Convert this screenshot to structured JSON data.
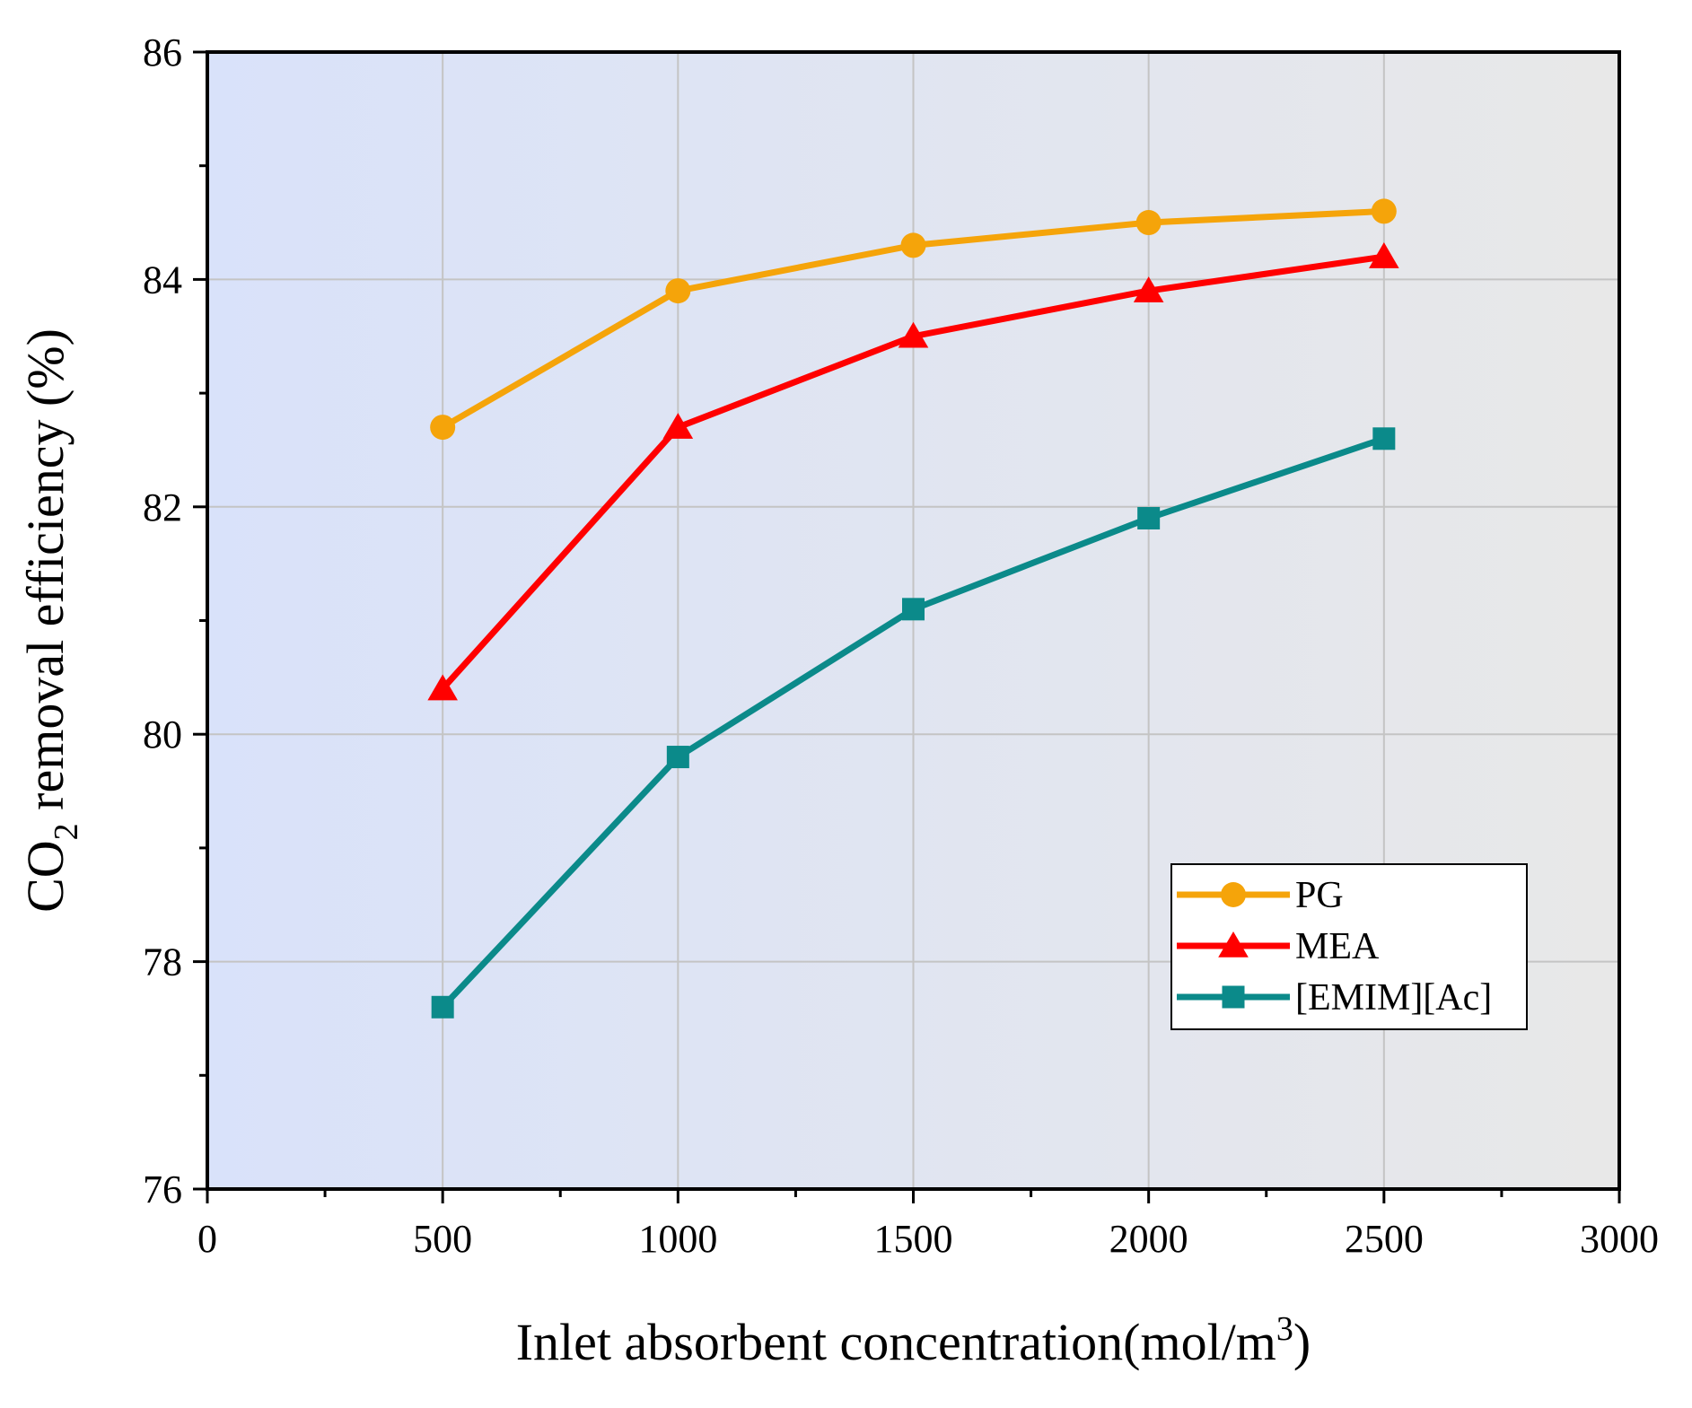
{
  "chart_data": {
    "type": "line",
    "title": "",
    "xlabel": "Inlet absorbent concentration(mol/m",
    "xlabel_superscript": "3",
    "xlabel_suffix": ")",
    "ylabel_prefix": "CO",
    "ylabel_subscript": "2",
    "ylabel_suffix": " removal efficiency (%)",
    "xlim": [
      0,
      3000
    ],
    "ylim": [
      76,
      86
    ],
    "xticks": [
      0,
      500,
      1000,
      1500,
      2000,
      2500,
      3000
    ],
    "yticks": [
      76,
      78,
      80,
      82,
      84,
      86
    ],
    "grid": true,
    "background_gradient": [
      "#d9e2fa",
      "#e8e8e8"
    ],
    "legend_position": "lower-right",
    "x": [
      500,
      1000,
      1500,
      2000,
      2500
    ],
    "series": [
      {
        "name": "PG",
        "color": "#f5a40a",
        "marker": "circle",
        "values": [
          82.7,
          83.9,
          84.3,
          84.5,
          84.6
        ]
      },
      {
        "name": "MEA",
        "color": "#ff0000",
        "marker": "triangle",
        "values": [
          80.4,
          82.7,
          83.5,
          83.9,
          84.2
        ]
      },
      {
        "name": "[EMIM][Ac]",
        "color": "#0b8a8a",
        "marker": "square",
        "values": [
          77.6,
          79.8,
          81.1,
          81.9,
          82.6
        ]
      }
    ]
  }
}
